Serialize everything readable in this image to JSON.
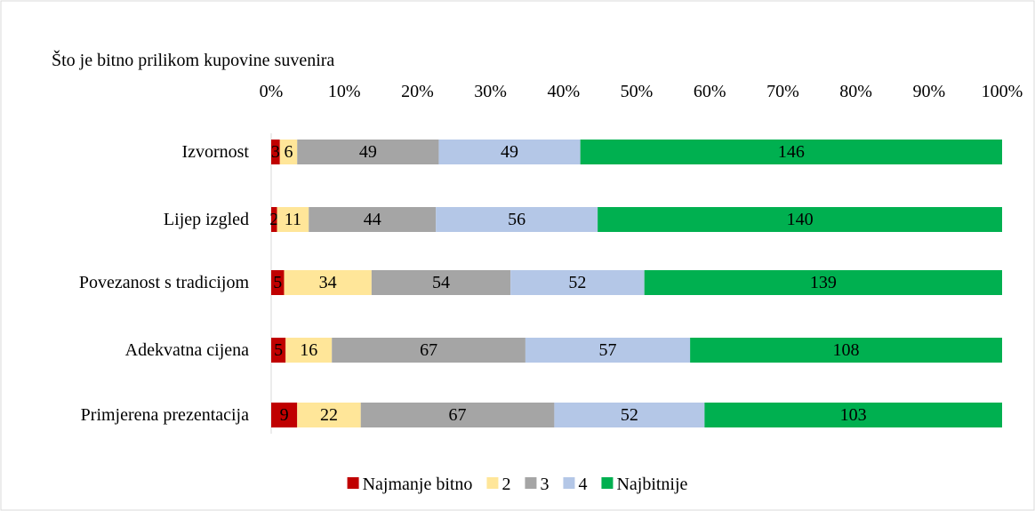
{
  "chart_data": {
    "type": "bar",
    "orientation": "horizontal",
    "stacking": "percent",
    "title": "Što je bitno prilikom kupovine suvenira",
    "categories": [
      "Izvornost",
      "Lijep izgled",
      "Povezanost s tradicijom",
      "Adekvatna cijena",
      "Primjerena prezentacija"
    ],
    "series": [
      {
        "name": "Najmanje bitno",
        "color": "#c00000",
        "values": [
          3,
          2,
          5,
          5,
          9
        ]
      },
      {
        "name": "2",
        "color": "#ffe699",
        "values": [
          6,
          11,
          34,
          16,
          22
        ]
      },
      {
        "name": "3",
        "color": "#a5a5a5",
        "values": [
          49,
          44,
          54,
          67,
          67
        ]
      },
      {
        "name": "4",
        "color": "#b4c7e7",
        "values": [
          49,
          56,
          52,
          57,
          52
        ]
      },
      {
        "name": "Najbitnije",
        "color": "#00b050",
        "values": [
          146,
          140,
          139,
          108,
          103
        ]
      }
    ],
    "xlim": [
      0,
      100
    ],
    "xticks": [
      {
        "value": 0,
        "label": "0%"
      },
      {
        "value": 10,
        "label": "10%"
      },
      {
        "value": 20,
        "label": "20%"
      },
      {
        "value": 30,
        "label": "30%"
      },
      {
        "value": 40,
        "label": "40%"
      },
      {
        "value": 50,
        "label": "50%"
      },
      {
        "value": 60,
        "label": "60%"
      },
      {
        "value": 70,
        "label": "70%"
      },
      {
        "value": 80,
        "label": "80%"
      },
      {
        "value": 90,
        "label": "90%"
      },
      {
        "value": 100,
        "label": "100%"
      }
    ],
    "legend": "bottom"
  }
}
